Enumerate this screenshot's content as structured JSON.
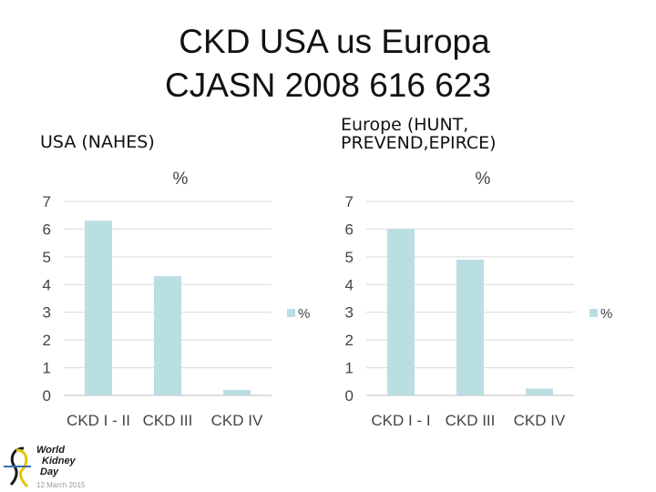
{
  "slide": {
    "title_line1": "CKD USA us Europa",
    "title_line2": "CJASN 2008 616 623",
    "left_label": "USA (NAHES)",
    "right_label_line1": "Europe (HUNT,",
    "right_label_line2": "PREVEND,EPIRCE)"
  },
  "logo": {
    "line1": "World",
    "line2": "Kidney",
    "line3": "Day",
    "date": "12 March 2015"
  },
  "colors": {
    "bar": "#b9dfe3",
    "grid": "#d9d9d9",
    "axis": "#bfbfbf"
  },
  "chart_data": [
    {
      "type": "bar",
      "title": "%",
      "categories": [
        "CKD I - II",
        "CKD III",
        "CKD IV"
      ],
      "series": [
        {
          "name": "%",
          "values": [
            6.3,
            4.3,
            0.2
          ]
        }
      ],
      "ylim": [
        0,
        7
      ],
      "yticks": [
        0,
        1,
        2,
        3,
        4,
        5,
        6,
        7
      ],
      "grid": true,
      "legend": "right"
    },
    {
      "type": "bar",
      "title": "%",
      "categories": [
        "CKD I - I",
        "CKD III",
        "CKD IV"
      ],
      "series": [
        {
          "name": "%",
          "values": [
            6.0,
            4.9,
            0.25
          ]
        }
      ],
      "ylim": [
        0,
        7
      ],
      "yticks": [
        0,
        1,
        2,
        3,
        4,
        5,
        6,
        7
      ],
      "grid": true,
      "legend": "right"
    }
  ]
}
